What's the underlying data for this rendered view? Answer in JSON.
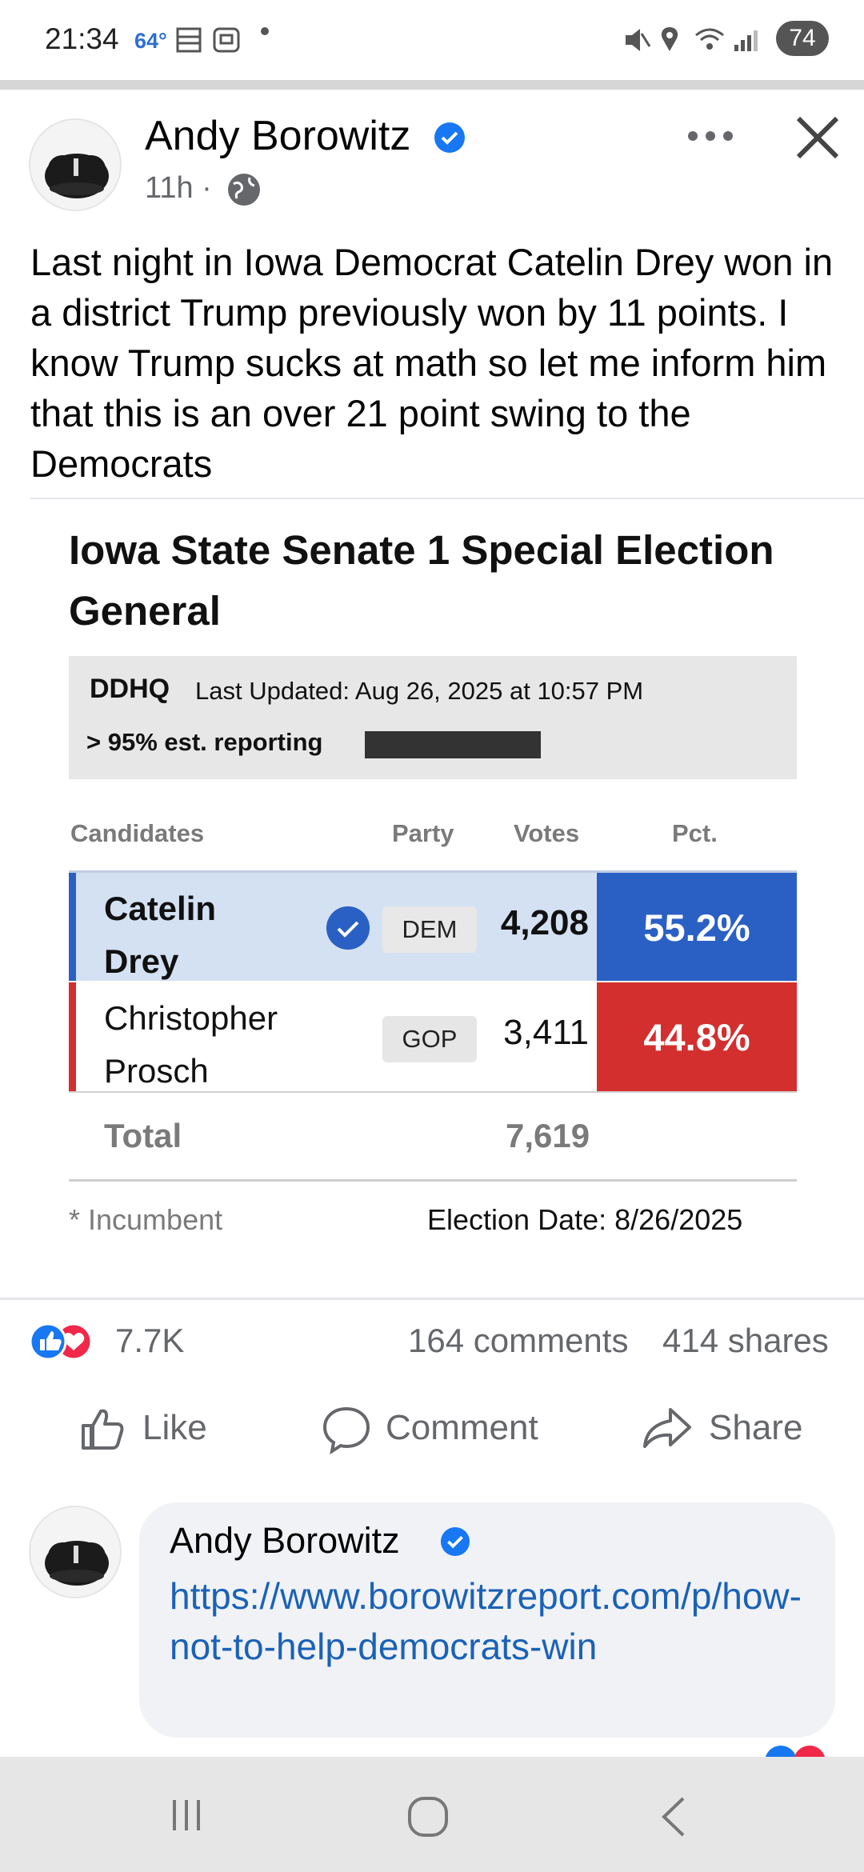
{
  "status_bar": {
    "time": "21:34",
    "temperature": "64°",
    "battery": "74"
  },
  "post": {
    "author": "Andy Borowitz",
    "time": "11h ·",
    "text": "Last night in Iowa Democrat Catelin Drey won in a district Trump previously won by 11 points. I know Trump sucks at math so let me inform him that this is an over 21 point swing to the Democrats"
  },
  "election_image": {
    "title": "Iowa State Senate 1 Special Election General",
    "logo": "DDHQ",
    "last_updated": "Last Updated: Aug 26, 2025 at 10:57 PM",
    "reporting": "> 95% est. reporting",
    "columns": {
      "candidates": "Candidates",
      "party": "Party",
      "votes": "Votes",
      "pct": "Pct."
    },
    "candidates": [
      {
        "name": "Catelin Drey",
        "party": "DEM",
        "votes": "4,208",
        "pct": "55.2%",
        "winner": true,
        "color": "#2a5fc4"
      },
      {
        "name": "Christopher Prosch",
        "party": "GOP",
        "votes": "3,411",
        "pct": "44.8%",
        "winner": false,
        "color": "#d32f2f"
      }
    ],
    "total_label": "Total",
    "total_votes": "7,619",
    "incumbent_note": "* Incumbent",
    "election_date": "Election Date: 8/26/2025"
  },
  "engagement": {
    "reactions": "7.7K",
    "comments": "164 comments",
    "shares": "414 shares"
  },
  "actions": {
    "like": "Like",
    "comment": "Comment",
    "share": "Share"
  },
  "comment": {
    "author": "Andy Borowitz",
    "link": "https://www.borowitzreport.com/p/how-not-to-help-democrats-win"
  },
  "colors": {
    "facebook_blue": "#1877f2",
    "link_blue": "#1b62b6",
    "dem_blue": "#2a5fc4",
    "gop_red": "#d32f2f"
  }
}
